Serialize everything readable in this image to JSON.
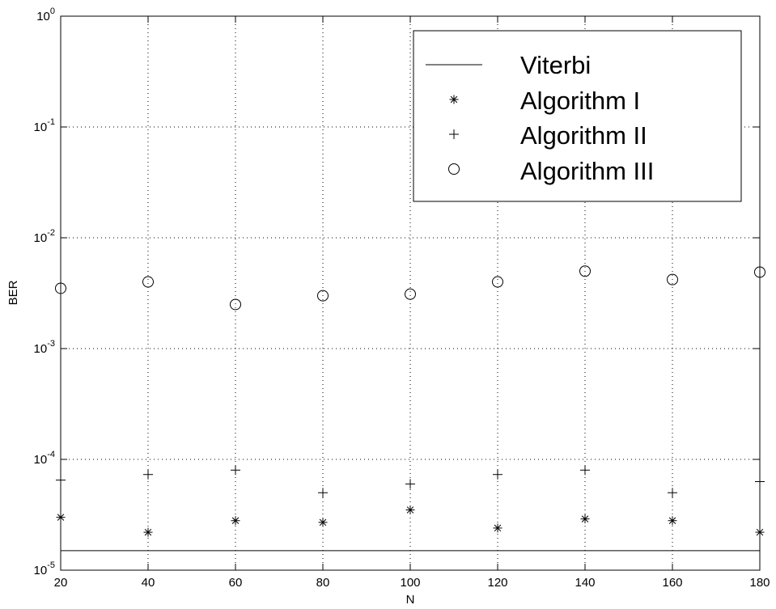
{
  "chart_data": {
    "type": "scatter",
    "title": "",
    "xlabel": "N",
    "ylabel": "BER",
    "xscale": "linear",
    "yscale": "log",
    "xlim": [
      20,
      180
    ],
    "ylim": [
      1e-05,
      1
    ],
    "xticks": [
      20,
      40,
      60,
      80,
      100,
      120,
      140,
      160,
      180
    ],
    "xtick_labels": [
      "20",
      "40",
      "60",
      "80",
      "100",
      "120",
      "140",
      "160",
      "180"
    ],
    "ytick_labels": [
      {
        "base": "10",
        "exp": "0"
      },
      {
        "base": "10",
        "exp": "-1"
      },
      {
        "base": "10",
        "exp": "-2"
      },
      {
        "base": "10",
        "exp": "-3"
      },
      {
        "base": "10",
        "exp": "-4"
      },
      {
        "base": "10",
        "exp": "-5"
      }
    ],
    "grid": true,
    "legend_position": "top-right",
    "x": [
      20,
      40,
      60,
      80,
      100,
      120,
      140,
      160,
      180
    ],
    "series": [
      {
        "name": "Viterbi",
        "marker": "line",
        "values": [
          1.5e-05,
          1.5e-05,
          1.5e-05,
          1.5e-05,
          1.5e-05,
          1.5e-05,
          1.5e-05,
          1.5e-05,
          1.5e-05
        ]
      },
      {
        "name": "Algorithm I",
        "marker": "asterisk",
        "values": [
          3e-05,
          2.2e-05,
          2.8e-05,
          2.7e-05,
          3.5e-05,
          2.4e-05,
          2.9e-05,
          2.8e-05,
          2.2e-05
        ]
      },
      {
        "name": "Algorithm II",
        "marker": "plus",
        "values": [
          6.5e-05,
          7.3e-05,
          8e-05,
          5e-05,
          6e-05,
          7.3e-05,
          8e-05,
          5e-05,
          6.3e-05
        ]
      },
      {
        "name": "Algorithm III",
        "marker": "circle",
        "values": [
          0.0035,
          0.004,
          0.0025,
          0.003,
          0.0031,
          0.004,
          0.005,
          0.0042,
          0.0049
        ]
      }
    ],
    "colors": {
      "foreground": "#000000",
      "background": "#ffffff"
    }
  }
}
